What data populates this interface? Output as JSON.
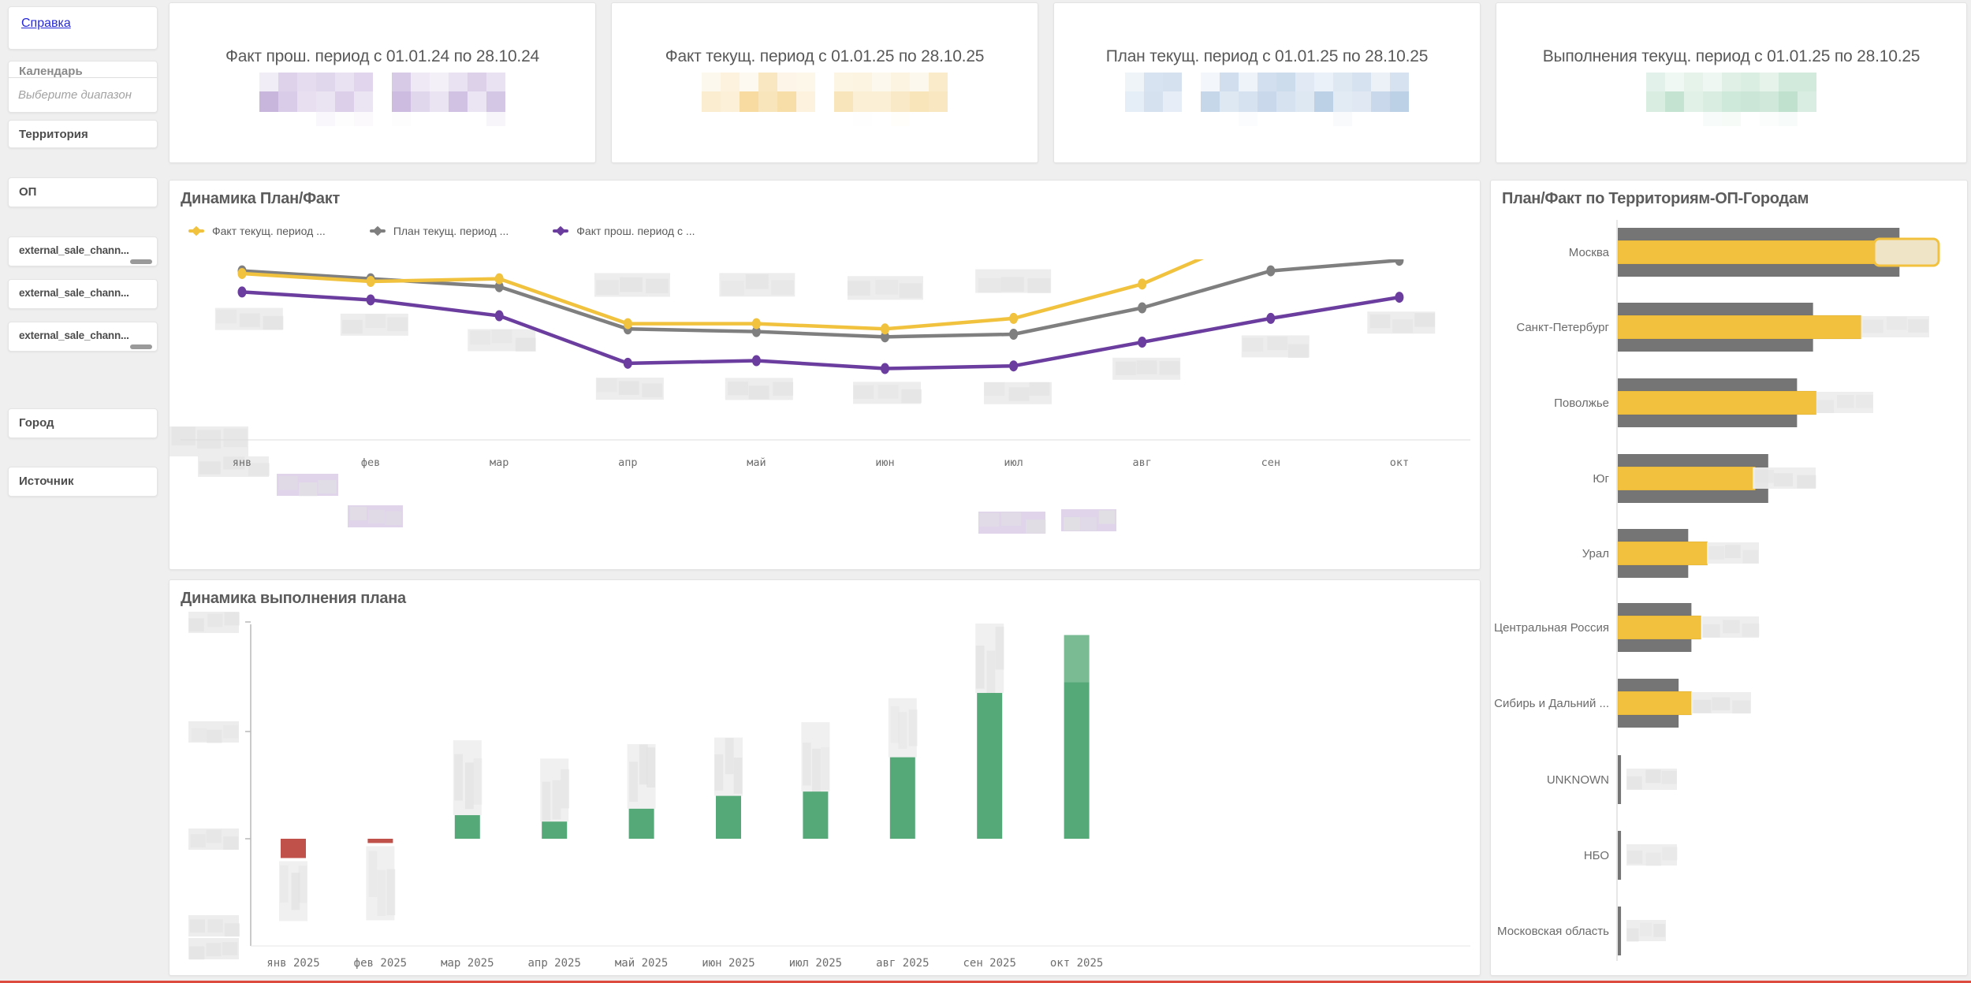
{
  "app": {
    "background": "#efefef",
    "bottom_accent_line_color": "#dd4a3e",
    "redaction_note": "numeric values in source screenshot are pixelated / redacted"
  },
  "sidebar": {
    "help_link": "Справка",
    "calendar_filter": {
      "label": "Календарь",
      "placeholder": "Выберите диапазон"
    },
    "filters": [
      {
        "id": "territory",
        "label": "Территория"
      },
      {
        "id": "op",
        "label": "ОП"
      },
      {
        "id": "ext1",
        "label": "external_sale_chann...",
        "scrollbar": true
      },
      {
        "id": "ext2",
        "label": "external_sale_chann...",
        "scrollbar": false
      },
      {
        "id": "ext3",
        "label": "external_sale_chann...",
        "scrollbar": true
      },
      {
        "id": "city",
        "label": "Город"
      },
      {
        "id": "source",
        "label": "Источник"
      }
    ]
  },
  "kpi_cards": [
    {
      "title": "Факт прош. период с 01.01.24 по 28.10.24",
      "color": "#b49bd1",
      "value_redacted": true
    },
    {
      "title": "Факт текущ. период с 01.01.25 по 28.10.25",
      "color": "#f4d084",
      "value_redacted": true
    },
    {
      "title": "План текущ. период с 01.01.25 по 28.10.25",
      "color": "#a3bedd",
      "value_redacted": true
    },
    {
      "title": "Выполнения текущ. период с 01.01.25 по 28.10.25",
      "color": "#a8d6bb",
      "value_redacted": true
    }
  ],
  "line_chart": {
    "title": "Динамика План/Факт",
    "chart_data": {
      "type": "line",
      "x": [
        "янв",
        "фев",
        "мар",
        "апр",
        "май",
        "июн",
        "июл",
        "авг",
        "сен",
        "окт"
      ],
      "series": [
        {
          "name": "Факт текущ. период ...",
          "color": "#f0c23e",
          "relative_values": [
            63,
            60,
            61,
            44,
            44,
            42,
            46,
            59,
            80,
            94
          ]
        },
        {
          "name": "План текущ. период ...",
          "color": "#7f7f7f",
          "relative_values": [
            64,
            61,
            58,
            42,
            41,
            39,
            40,
            50,
            64,
            68
          ]
        },
        {
          "name": "Факт прош. период с ...",
          "color": "#6a3d9e",
          "relative_values": [
            56,
            53,
            47,
            29,
            30,
            27,
            28,
            37,
            46,
            54
          ]
        }
      ],
      "ylim": [
        0,
        100
      ],
      "note": "values 0-100 are relative estimates; data labels are pixelated (redacted) in source",
      "legend_position": "top"
    }
  },
  "exec_chart": {
    "title": "Динамика выполнения плана",
    "chart_data": {
      "type": "bar",
      "categories": [
        "янв 2025",
        "фев 2025",
        "мар 2025",
        "апр 2025",
        "май 2025",
        "июн 2025",
        "июл 2025",
        "авг 2025",
        "сен 2025",
        "окт 2025"
      ],
      "relative_values": [
        -9,
        -2,
        11,
        8,
        14,
        20,
        22,
        38,
        68,
        95
      ],
      "positive_color": "#55a877",
      "negative_color": "#c0504a",
      "ylim": [
        -35,
        100
      ],
      "note": "values are relative estimates; axis tick labels and bar labels are pixelated (redacted) in source"
    }
  },
  "territory_chart": {
    "title": "План/Факт по Территориям-ОП-Городам",
    "chart_data": {
      "type": "bar",
      "orientation": "horizontal",
      "categories": [
        "Москва",
        "Санкт-Петербург",
        "Поволжье",
        "Юг",
        "Урал",
        "Центральная Россия",
        "Сибирь и Дальний ...",
        "UNKNOWN",
        "НБО",
        "Московская область"
      ],
      "series": [
        {
          "name": "План",
          "color": "#757575",
          "relative_values": [
            88,
            61,
            56,
            47,
            22,
            23,
            19,
            1,
            1,
            1
          ]
        },
        {
          "name": "Факт",
          "color": "#f2c13d",
          "relative_values": [
            100,
            76,
            62,
            43,
            28,
            26,
            23,
            0,
            0,
            0
          ]
        }
      ],
      "note": "values 0-100 are relative estimates; bar value labels are pixelated (redacted) in source"
    }
  }
}
